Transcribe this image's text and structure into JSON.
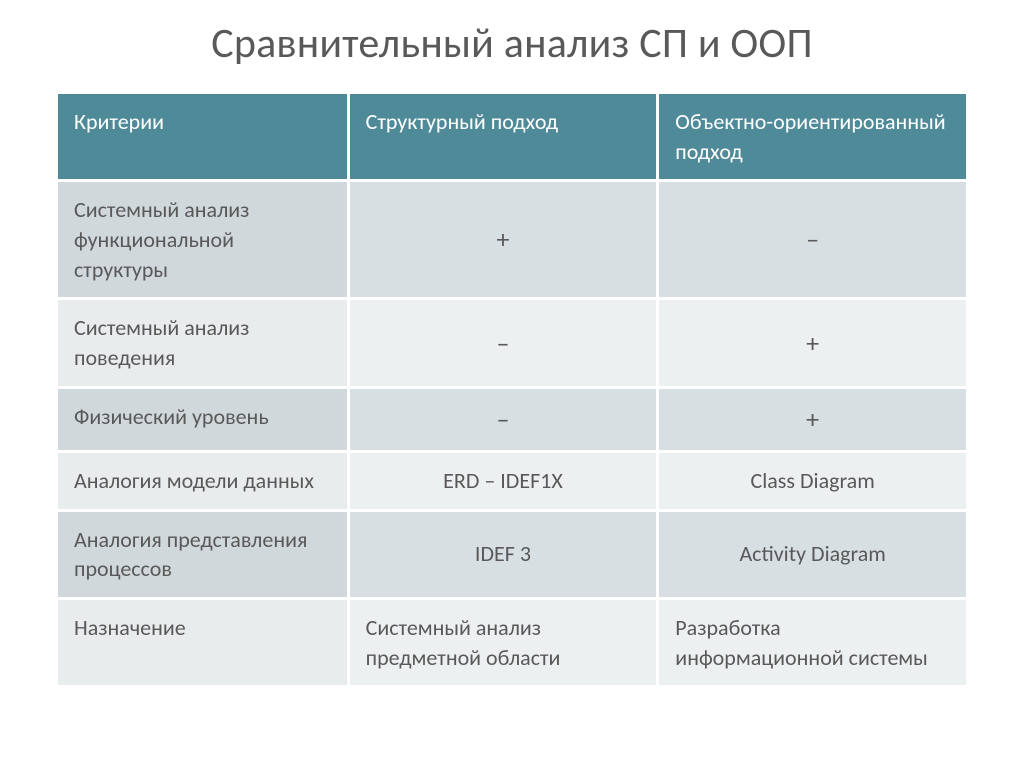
{
  "title": "Сравнительный анализ СП и ООП",
  "columns": [
    "Критерии",
    "Структурный подход",
    "Объектно-ориентированный подход"
  ],
  "rows": [
    {
      "crit": "Системный анализ функциональной структуры",
      "sp": "+",
      "oop": "–",
      "centered": true,
      "symbol": true
    },
    {
      "crit": "Системный анализ поведения",
      "sp": "–",
      "oop": "+",
      "centered": true,
      "symbol": true
    },
    {
      "crit": "Физический уровень",
      "sp": "–",
      "oop": "+",
      "centered": true,
      "symbol": true
    },
    {
      "crit": "Аналогия модели данных",
      "sp": "ERD – IDEF1X",
      "oop": "Class Diagram",
      "centered": true,
      "symbol": false
    },
    {
      "crit": "Аналогия представления процессов",
      "sp": "IDEF 3",
      "oop": "Activity Diagram",
      "centered": true,
      "symbol": false
    },
    {
      "crit": "Назначение",
      "sp": "Системный анализ предметной области",
      "oop": "Разработка информационной системы",
      "centered": false,
      "symbol": false
    }
  ],
  "colors": {
    "title_text": "#595959",
    "header_bg": "#4f8a99",
    "header_text": "#ffffff",
    "odd_crit_bg": "#d0d8db",
    "odd_val_bg": "#d7dfe2",
    "even_crit_bg": "#e8eced",
    "even_val_bg": "#ecf0f1",
    "cell_text": "#595959",
    "page_bg": "#ffffff"
  },
  "typography": {
    "title_fontsize": 42,
    "cell_fontsize": 22,
    "symbol_fontsize": 26,
    "font_family": "Calibri"
  },
  "layout": {
    "slide_width": 1024,
    "slide_height": 767,
    "col_widths_pct": [
      32,
      34,
      34
    ],
    "cell_spacing": 3
  },
  "type": "table"
}
